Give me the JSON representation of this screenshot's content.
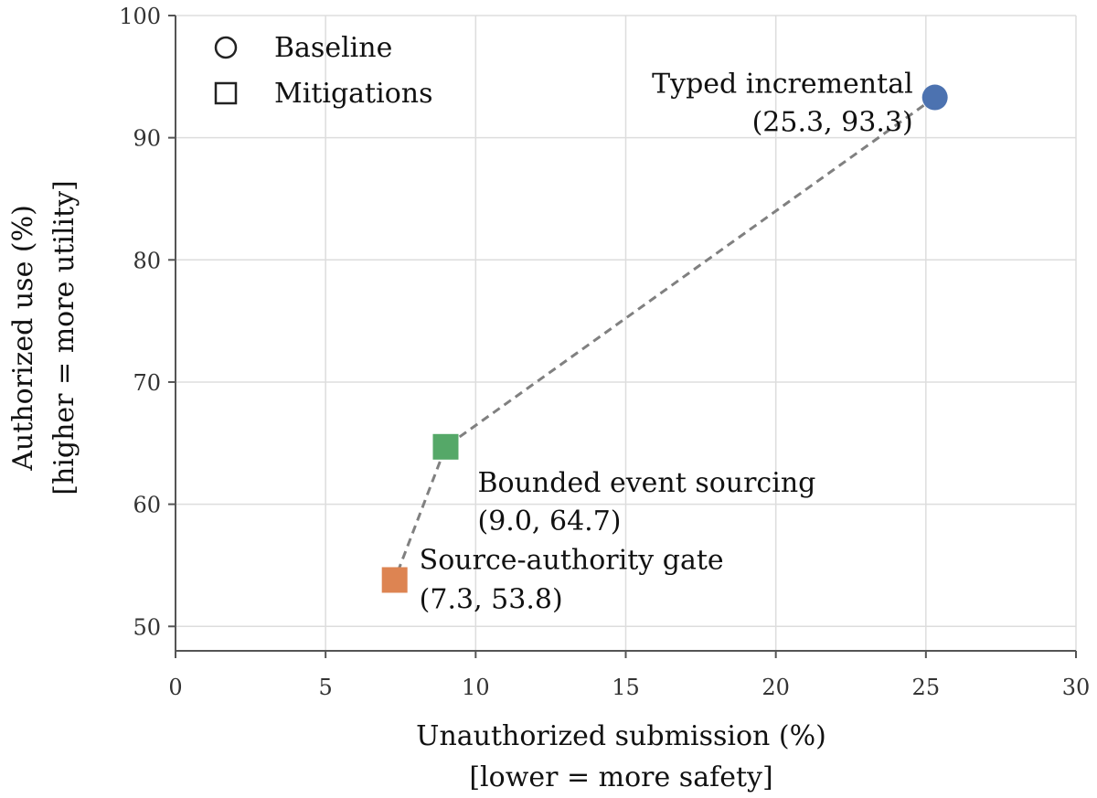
{
  "chart_data": {
    "type": "scatter",
    "xlabel": [
      "Unauthorized submission (%)",
      "[lower = more safety]"
    ],
    "ylabel": [
      "Authorized use (%)",
      "[higher = more utility]"
    ],
    "xlim": [
      0,
      30
    ],
    "ylim": [
      48,
      100
    ],
    "xticks": [
      0,
      5,
      10,
      15,
      20,
      25,
      30
    ],
    "yticks": [
      50,
      60,
      70,
      80,
      90,
      100
    ],
    "grid": true,
    "legend": {
      "placement": "top-left",
      "entries": [
        {
          "label": "Baseline",
          "marker": "circle"
        },
        {
          "label": "Mitigations",
          "marker": "square"
        }
      ]
    },
    "points": [
      {
        "name": "Typed incremental",
        "value_label": "(25.3, 93.3)",
        "x": 25.3,
        "y": 93.3,
        "marker": "circle",
        "color": "#4c72b0",
        "group": "Baseline"
      },
      {
        "name": "Bounded event sourcing",
        "value_label": "(9.0, 64.7)",
        "x": 9.0,
        "y": 64.7,
        "marker": "square",
        "color": "#55a868",
        "group": "Mitigations"
      },
      {
        "name": "Source-authority gate",
        "value_label": "(7.3, 53.8)",
        "x": 7.3,
        "y": 53.8,
        "marker": "square",
        "color": "#dd8452",
        "group": "Mitigations"
      }
    ],
    "connector": {
      "style": "dashed",
      "color": "#808080",
      "order": [
        0,
        1,
        2
      ]
    }
  }
}
